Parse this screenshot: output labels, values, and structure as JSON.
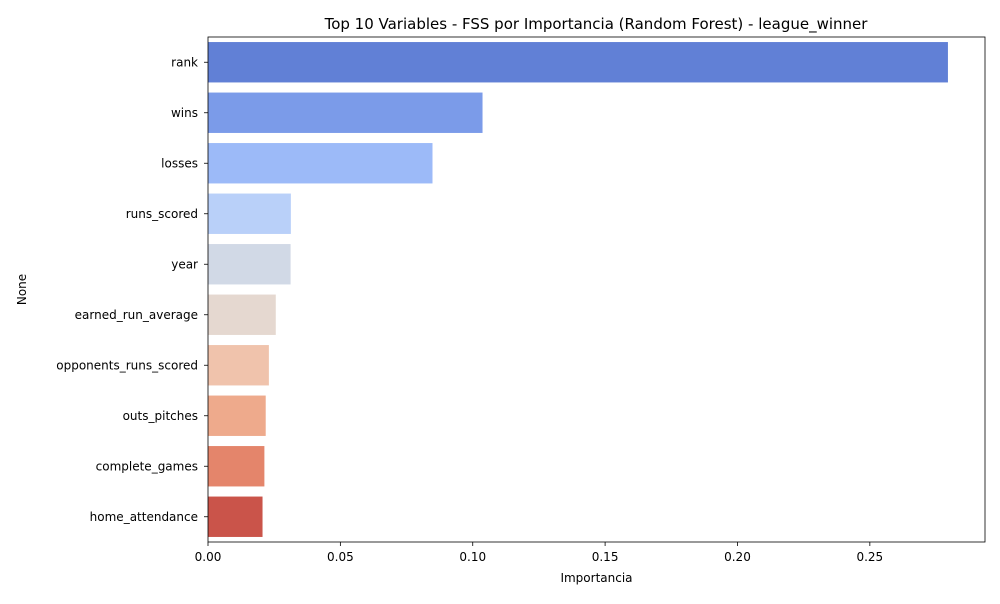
{
  "chart_data": {
    "type": "bar",
    "orientation": "horizontal",
    "title": "Top 10 Variables - FSS por Importancia (Random Forest) - league_winner",
    "xlabel": "Importancia",
    "ylabel": "None",
    "xlim": [
      0,
      0.2935
    ],
    "xticks": [
      0.0,
      0.05,
      0.1,
      0.15,
      0.2,
      0.25
    ],
    "xtick_labels": [
      "0.00",
      "0.05",
      "0.10",
      "0.15",
      "0.20",
      "0.25"
    ],
    "grid": false,
    "legend": "none",
    "categories": [
      "rank",
      "wins",
      "losses",
      "runs_scored",
      "year",
      "earned_run_average",
      "opponents_runs_scored",
      "outs_pitches",
      "complete_games",
      "home_attendance"
    ],
    "values": [
      0.2795,
      0.1037,
      0.0848,
      0.0313,
      0.0312,
      0.0256,
      0.023,
      0.0218,
      0.0213,
      0.0206
    ],
    "colors": [
      "#6180d6",
      "#7b9be9",
      "#9cbaf8",
      "#b9d0f9",
      "#d1d9e6",
      "#e5d8d0",
      "#f0c3ac",
      "#eeaa8c",
      "#e4856b",
      "#ca544a"
    ]
  }
}
